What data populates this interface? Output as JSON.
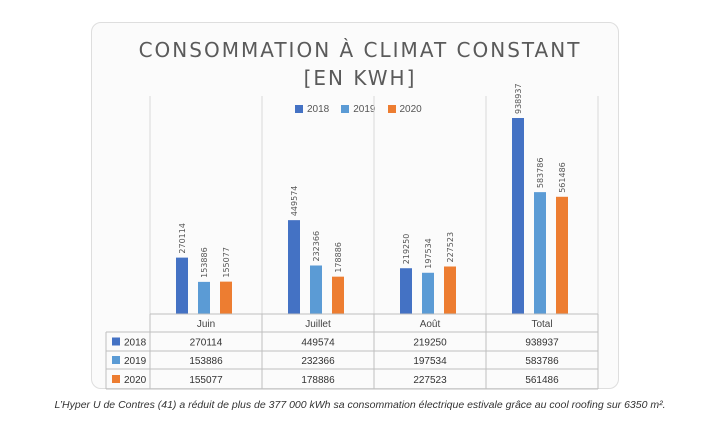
{
  "title_line1": "CONSOMMATION À CLIMAT CONSTANT",
  "title_line2": "[EN KWH]",
  "caption": "L’Hyper U de Contres (41) a réduit de plus de 377 000 kWh sa consommation électrique estivale grâce au cool roofing sur 6350 m².",
  "colors": {
    "2018": "#4472c4",
    "2019": "#5b9bd5",
    "2020": "#ed7d31"
  },
  "chart_data": {
    "type": "bar",
    "title": "CONSOMMATION À CLIMAT CONSTANT [EN KWH]",
    "categories": [
      "Juin",
      "Juillet",
      "Août",
      "Total"
    ],
    "series": [
      {
        "name": "2018",
        "values": [
          270114,
          449574,
          219250,
          938937
        ]
      },
      {
        "name": "2019",
        "values": [
          153886,
          232366,
          197534,
          583786
        ]
      },
      {
        "name": "2020",
        "values": [
          155077,
          178886,
          227523,
          561486
        ]
      }
    ],
    "legend": "top",
    "data_table": true,
    "grid": false
  }
}
